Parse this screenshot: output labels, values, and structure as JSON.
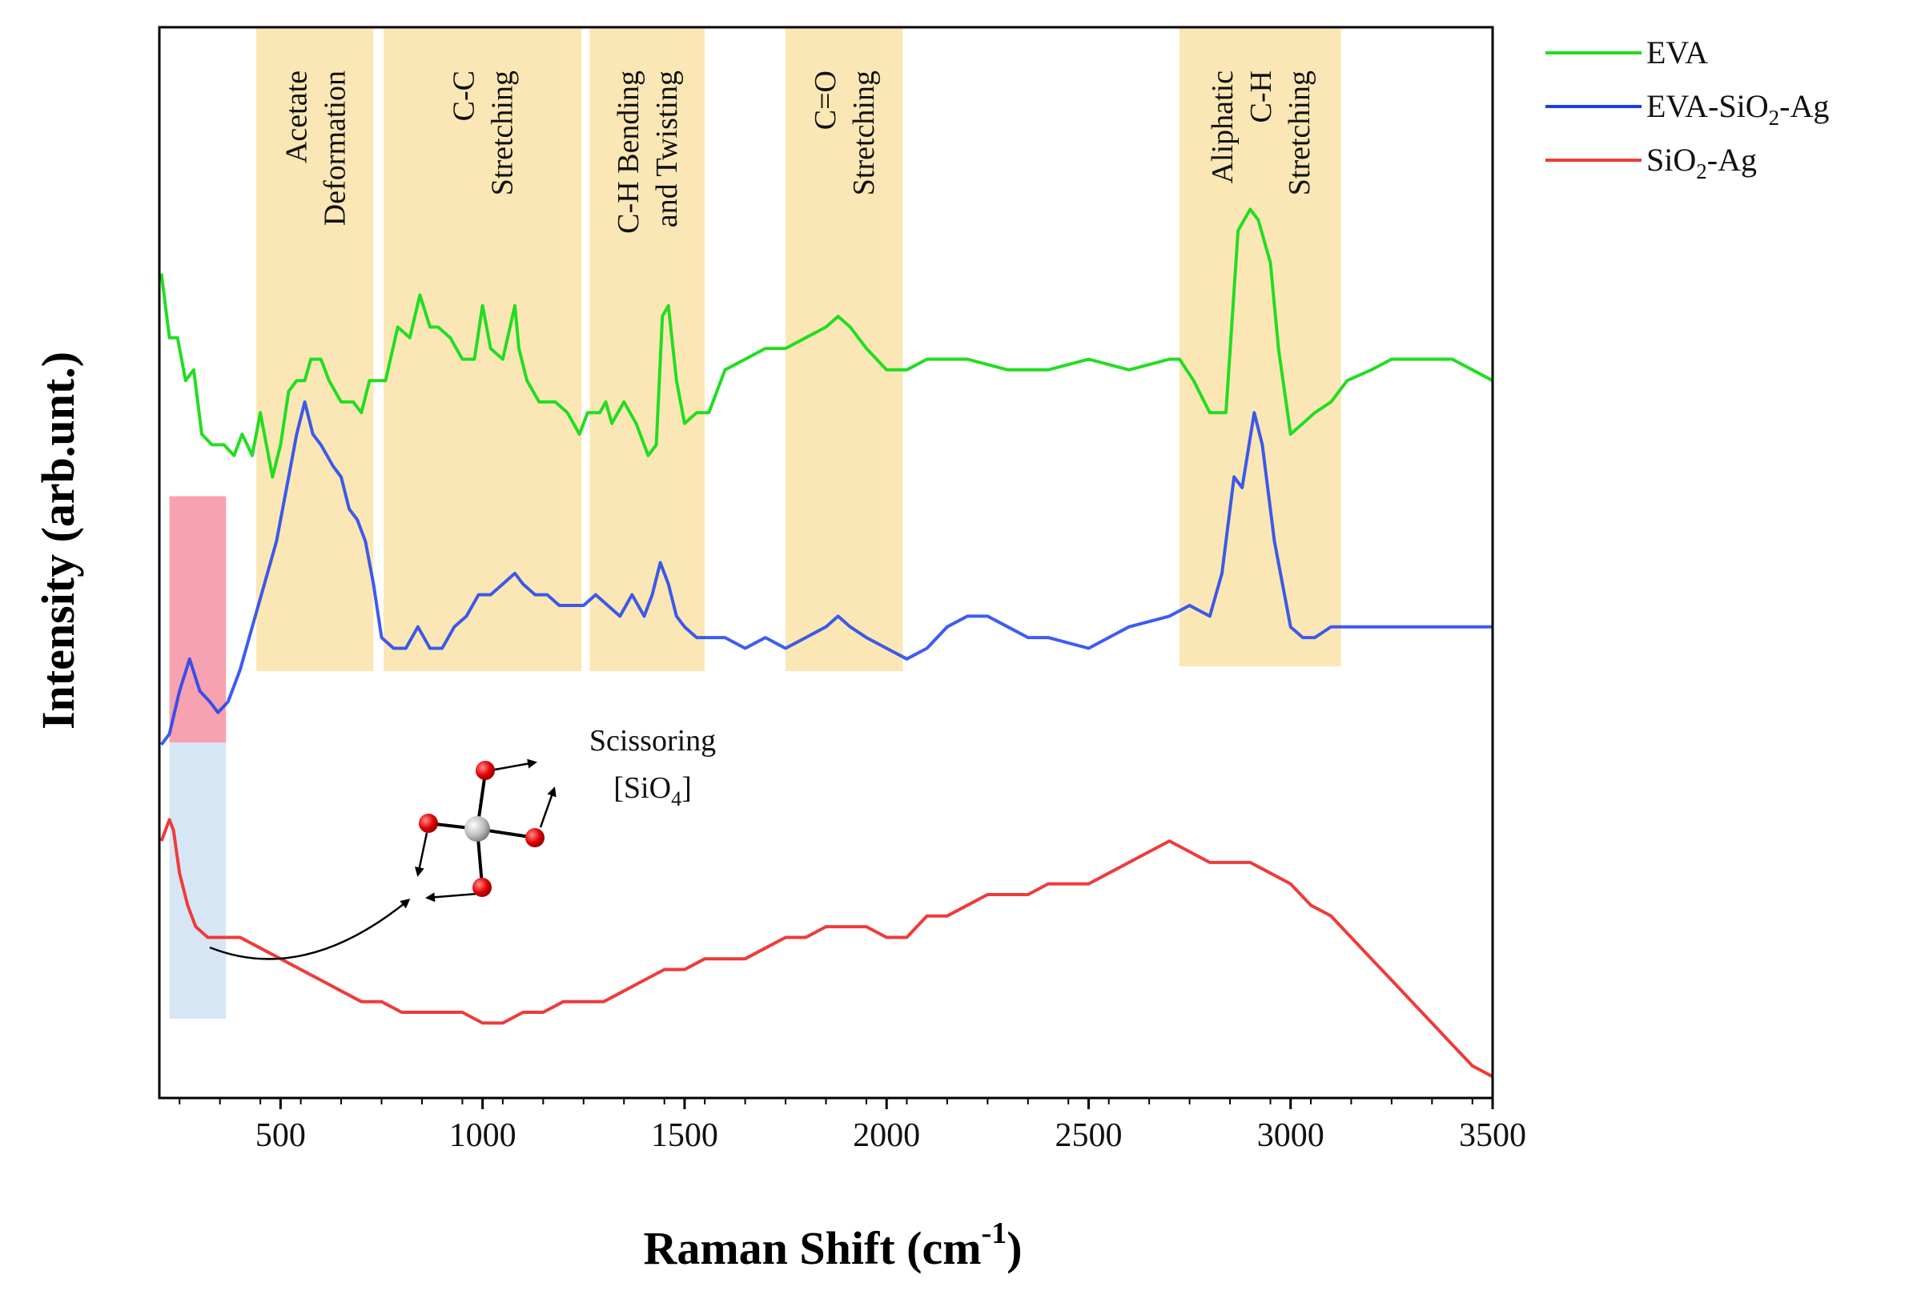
{
  "chart_data": {
    "type": "line",
    "title": "",
    "xlabel": "Raman Shift (cm",
    "xlabel_sup": "-1",
    "xlabel_close": ")",
    "ylabel": "Intensity (arb.unt.)",
    "xlim": [
      200,
      3500
    ],
    "ylim": [
      0,
      100
    ],
    "y_ticks_shown": false,
    "x_ticks": [
      500,
      1000,
      1500,
      2000,
      2500,
      3000,
      3500
    ],
    "legend_position": "top-right-outside",
    "legend": [
      {
        "sub_parts": [
          "EVA"
        ],
        "color": "#22dd22"
      },
      {
        "sub_parts": [
          "EVA-SiO",
          "2",
          "-Ag"
        ],
        "color": "#1a3ff0"
      },
      {
        "sub_parts": [
          "SiO",
          "2",
          "-Ag"
        ],
        "color": "#ee3b3b"
      }
    ],
    "bands": [
      {
        "from": 440,
        "to": 730,
        "lines": [
          "Acetate",
          "Deformation"
        ],
        "color": "#fbe7b5"
      },
      {
        "from": 755,
        "to": 1245,
        "lines": [
          "C-C",
          "Stretching"
        ],
        "color": "#fbe7b5"
      },
      {
        "from": 1265,
        "to": 1550,
        "lines": [
          "C-H Bending",
          "and Twisting"
        ],
        "color": "#fbe7b5"
      },
      {
        "from": 1750,
        "to": 2040,
        "lines": [
          "C=O",
          "Stretching"
        ],
        "color": "#fbe7b5"
      },
      {
        "from": 2725,
        "to": 3125,
        "lines": [
          "Aliphatic",
          "C-H",
          "Stretching"
        ],
        "color": "#fbe7b5"
      }
    ],
    "highlight_boxes": [
      {
        "from": 225,
        "to": 365,
        "y_from": 33.2,
        "y_to": 56.2,
        "color": "#f7a2b0"
      },
      {
        "from": 225,
        "to": 365,
        "y_from": 7.4,
        "y_to": 33.2,
        "color": "#d6e6f5"
      }
    ],
    "annotation": {
      "line1": "Scissoring",
      "line2_main": "[SiO",
      "line2_sub": "4",
      "line2_close": "]"
    },
    "series": [
      {
        "name": "EVA",
        "color": "#22dd22",
        "x": [
          205,
          225,
          245,
          265,
          285,
          305,
          330,
          360,
          385,
          405,
          430,
          450,
          460,
          480,
          500,
          520,
          540,
          560,
          575,
          600,
          620,
          650,
          680,
          700,
          720,
          740,
          760,
          790,
          820,
          845,
          870,
          890,
          920,
          950,
          980,
          1000,
          1020,
          1050,
          1080,
          1090,
          1110,
          1140,
          1180,
          1210,
          1240,
          1260,
          1290,
          1305,
          1320,
          1350,
          1380,
          1410,
          1430,
          1445,
          1460,
          1480,
          1500,
          1530,
          1560,
          1600,
          1650,
          1700,
          1750,
          1800,
          1850,
          1880,
          1910,
          1950,
          2000,
          2050,
          2100,
          2200,
          2300,
          2400,
          2500,
          2600,
          2700,
          2725,
          2760,
          2800,
          2840,
          2870,
          2900,
          2920,
          2950,
          2970,
          3000,
          3030,
          3060,
          3100,
          3140,
          3200,
          3250,
          3300,
          3350,
          3400,
          3450,
          3500
        ],
        "y": [
          77,
          71,
          71,
          67,
          68,
          62,
          61,
          61,
          60,
          62,
          60,
          64,
          62,
          58,
          61,
          66,
          67,
          67,
          69,
          69,
          67,
          65,
          65,
          64,
          67,
          67,
          67,
          72,
          71,
          75,
          72,
          72,
          71,
          69,
          69,
          74,
          70,
          69,
          74,
          70,
          67,
          65,
          65,
          64,
          62,
          64,
          64,
          65,
          63,
          65,
          63,
          60,
          61,
          73,
          74,
          67,
          63,
          64,
          64,
          68,
          69,
          70,
          70,
          71,
          72,
          73,
          72,
          70,
          68,
          68,
          69,
          69,
          68,
          68,
          69,
          68,
          69,
          69,
          67,
          64,
          64,
          81,
          83,
          82,
          78,
          70,
          62,
          63,
          64,
          65,
          67,
          68,
          69,
          69,
          69,
          69,
          68,
          67
        ]
      },
      {
        "name": "EVA-SiO2-Ag",
        "color": "#1a3ff0",
        "x": [
          205,
          225,
          250,
          275,
          300,
          325,
          345,
          370,
          400,
          430,
          460,
          490,
          520,
          540,
          560,
          580,
          600,
          630,
          650,
          670,
          690,
          710,
          730,
          750,
          780,
          810,
          840,
          870,
          900,
          930,
          960,
          990,
          1020,
          1050,
          1080,
          1100,
          1130,
          1160,
          1190,
          1220,
          1250,
          1280,
          1310,
          1340,
          1370,
          1400,
          1420,
          1440,
          1460,
          1480,
          1500,
          1530,
          1560,
          1600,
          1650,
          1700,
          1750,
          1800,
          1850,
          1880,
          1910,
          1950,
          2000,
          2050,
          2100,
          2150,
          2200,
          2250,
          2300,
          2350,
          2400,
          2500,
          2600,
          2700,
          2750,
          2800,
          2830,
          2860,
          2880,
          2910,
          2930,
          2960,
          3000,
          3030,
          3060,
          3100,
          3140,
          3200,
          3300,
          3400,
          3500
        ],
        "y": [
          33,
          34,
          38,
          41,
          38,
          37,
          36,
          37,
          40,
          44,
          48,
          52,
          58,
          62,
          65,
          62,
          61,
          59,
          58,
          55,
          54,
          52,
          48,
          43,
          42,
          42,
          44,
          42,
          42,
          44,
          45,
          47,
          47,
          48,
          49,
          48,
          47,
          47,
          46,
          46,
          46,
          47,
          46,
          45,
          47,
          45,
          47,
          50,
          48,
          45,
          44,
          43,
          43,
          43,
          42,
          43,
          42,
          43,
          44,
          45,
          44,
          43,
          42,
          41,
          42,
          44,
          45,
          45,
          44,
          43,
          43,
          42,
          44,
          45,
          46,
          45,
          49,
          58,
          57,
          64,
          61,
          52,
          44,
          43,
          43,
          44,
          44,
          44,
          44,
          44,
          44
        ]
      },
      {
        "name": "SiO2-Ag",
        "color": "#ee3b3b",
        "x": [
          205,
          215,
          225,
          235,
          250,
          270,
          290,
          320,
          360,
          400,
          450,
          500,
          550,
          600,
          650,
          700,
          750,
          800,
          850,
          900,
          950,
          1000,
          1050,
          1100,
          1150,
          1200,
          1250,
          1300,
          1350,
          1400,
          1450,
          1500,
          1550,
          1600,
          1650,
          1700,
          1750,
          1800,
          1850,
          1900,
          1950,
          2000,
          2050,
          2100,
          2150,
          2200,
          2250,
          2300,
          2350,
          2400,
          2450,
          2500,
          2550,
          2600,
          2650,
          2700,
          2750,
          2800,
          2850,
          2900,
          2950,
          3000,
          3050,
          3100,
          3150,
          3200,
          3250,
          3300,
          3350,
          3400,
          3450,
          3500
        ],
        "y": [
          24,
          25,
          26,
          25,
          21,
          18,
          16,
          15,
          15,
          15,
          14,
          13,
          12,
          11,
          10,
          9,
          9,
          8,
          8,
          8,
          8,
          7,
          7,
          8,
          8,
          9,
          9,
          9,
          10,
          11,
          12,
          12,
          13,
          13,
          13,
          14,
          15,
          15,
          16,
          16,
          16,
          15,
          15,
          17,
          17,
          18,
          19,
          19,
          19,
          20,
          20,
          20,
          21,
          22,
          23,
          24,
          23,
          22,
          22,
          22,
          21,
          20,
          18,
          17,
          15,
          13,
          11,
          9,
          7,
          5,
          3,
          2
        ]
      }
    ]
  }
}
